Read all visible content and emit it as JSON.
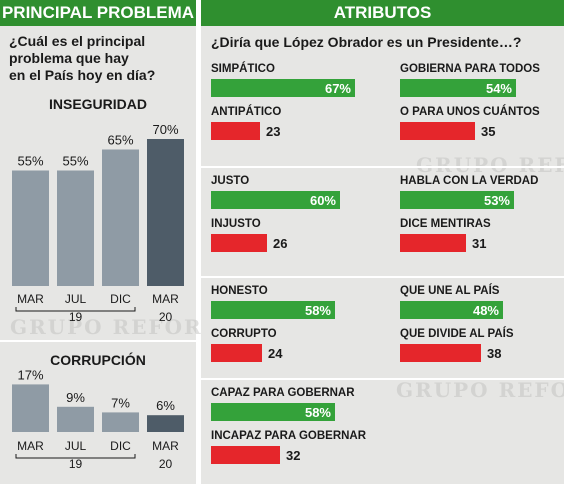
{
  "left_panel": {
    "header": "PRINCIPAL PROBLEMA",
    "question": [
      "¿Cuál es el principal",
      "problema que hay",
      "en el País hoy en día?"
    ]
  },
  "right_panel": {
    "header": "ATRIBUTOS",
    "question": "¿Diría que López Obrador es un Presidente…?"
  },
  "watermark": "GRUPO REFORMA",
  "colors": {
    "header": "#2f8f2f",
    "positive": "#34a23a",
    "negative": "#e5262b",
    "column": "#8f9ba5",
    "column_latest": "#4e5c68"
  },
  "chart_data": [
    {
      "type": "bar",
      "title": "INSEGURIDAD",
      "categories": [
        "MAR",
        "JUL",
        "DIC",
        "MAR"
      ],
      "year_labels": [
        "19",
        "20"
      ],
      "values": [
        55,
        55,
        65,
        70
      ],
      "labels": [
        "55%",
        "55%",
        "65%",
        "70%"
      ]
    },
    {
      "type": "bar",
      "title": "CORRUPCIÓN",
      "categories": [
        "MAR",
        "JUL",
        "DIC",
        "MAR"
      ],
      "year_labels": [
        "19",
        "20"
      ],
      "values": [
        17,
        9,
        7,
        6
      ],
      "labels": [
        "17%",
        "9%",
        "7%",
        "6%"
      ]
    },
    {
      "type": "bar",
      "orientation": "horizontal",
      "title": "¿Diría que López Obrador es un Presidente…?",
      "xlim": [
        0,
        70
      ],
      "pairs": [
        {
          "positive": {
            "label": "SIMPÁTICO",
            "value": 67,
            "display": "67%"
          },
          "negative": {
            "label": "ANTIPÁTICO",
            "value": 23,
            "display": "23"
          }
        },
        {
          "positive": {
            "label": "GOBIERNA PARA TODOS",
            "value": 54,
            "display": "54%"
          },
          "negative": {
            "label": "O PARA UNOS CUÁNTOS",
            "value": 35,
            "display": "35"
          }
        },
        {
          "positive": {
            "label": "JUSTO",
            "value": 60,
            "display": "60%"
          },
          "negative": {
            "label": "INJUSTO",
            "value": 26,
            "display": "26"
          }
        },
        {
          "positive": {
            "label": "HABLA CON LA VERDAD",
            "value": 53,
            "display": "53%"
          },
          "negative": {
            "label": "DICE MENTIRAS",
            "value": 31,
            "display": "31"
          }
        },
        {
          "positive": {
            "label": "HONESTO",
            "value": 58,
            "display": "58%"
          },
          "negative": {
            "label": "CORRUPTO",
            "value": 24,
            "display": "24"
          }
        },
        {
          "positive": {
            "label": "QUE UNE AL PAÍS",
            "value": 48,
            "display": "48%"
          },
          "negative": {
            "label": "QUE DIVIDE AL PAÍS",
            "value": 38,
            "display": "38"
          }
        },
        {
          "positive": {
            "label": "CAPAZ PARA GOBERNAR",
            "value": 58,
            "display": "58%"
          },
          "negative": {
            "label": "INCAPAZ PARA GOBERNAR",
            "value": 32,
            "display": "32"
          }
        }
      ]
    }
  ]
}
